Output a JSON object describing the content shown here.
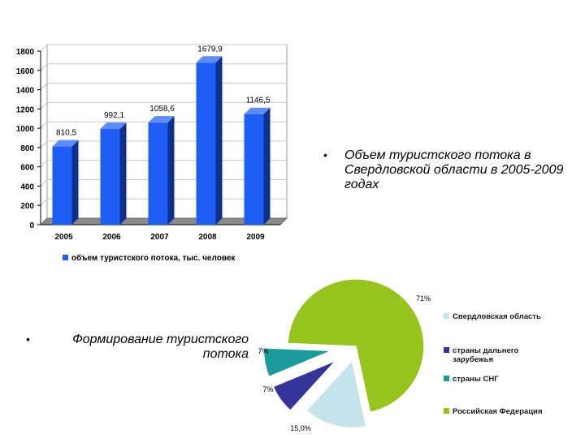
{
  "chart_data": [
    {
      "type": "bar",
      "categories": [
        "2005",
        "2006",
        "2007",
        "2008",
        "2009"
      ],
      "series": [
        {
          "name": "объем туристского потока, тыс. человек",
          "values": [
            810.5,
            992.1,
            1058.6,
            1679.9,
            1146.5
          ],
          "labels": [
            "810,5",
            "992,1",
            "1058,6",
            "1679,9",
            "1146,5"
          ]
        }
      ],
      "ylim": [
        0,
        1800
      ],
      "yticks": [
        0,
        200,
        400,
        600,
        800,
        1000,
        1200,
        1400,
        1600,
        1800
      ],
      "grid": true,
      "legend_position": "bottom",
      "colors": {
        "bar_front": "#1f5ef5",
        "bar_side": "#0f2f8f",
        "bar_top": "#5c8cff",
        "floor": "#8a8a8a"
      }
    },
    {
      "type": "pie",
      "categories": [
        "Свердловская область",
        "страны дальнего зарубежья",
        "страны СНГ",
        "Российская Федерация"
      ],
      "values": [
        15.0,
        7,
        7,
        71
      ],
      "labels": [
        "15,0%",
        "7%",
        "7%",
        "71%"
      ],
      "legend_position": "right",
      "colors": [
        "#c5e3ea",
        "#34349a",
        "#1a9a9a",
        "#96c31c"
      ]
    }
  ],
  "captions": {
    "bar_caption": "Объем туристского потока в Свердловской области в 2005-2009 годах",
    "pie_caption": "Формирование туристского потока",
    "bullet": "•"
  }
}
